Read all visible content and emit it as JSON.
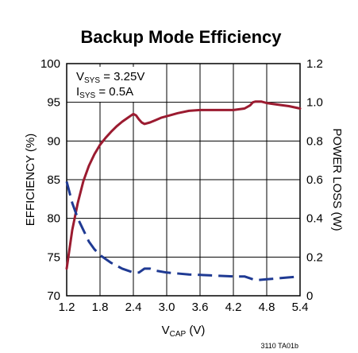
{
  "chart_data": {
    "type": "line",
    "title": "Backup Mode Efficiency",
    "xlabel": {
      "main": "V",
      "sub": "CAP",
      "suffix": " (V)"
    },
    "ylabel_left": "EFFICIENCY (%)",
    "ylabel_right": "POWER LOSS (W)",
    "xlim": [
      1.2,
      5.4
    ],
    "ylim_left": [
      70,
      100
    ],
    "ylim_right": [
      0,
      1.2
    ],
    "x_ticks": [
      "1.2",
      "1.8",
      "2.4",
      "3.0",
      "3.6",
      "4.2",
      "4.8",
      "5.4"
    ],
    "y_left_ticks": [
      "70",
      "75",
      "80",
      "85",
      "90",
      "95",
      "100"
    ],
    "y_right_ticks": [
      "0",
      "0.2",
      "0.4",
      "0.6",
      "0.8",
      "1.0",
      "1.2"
    ],
    "grid": true,
    "annotations": [
      {
        "main": "V",
        "sub": "SYS",
        "rest": " = 3.25V"
      },
      {
        "main": "I",
        "sub": "SYS",
        "rest": " = 0.5A"
      }
    ],
    "footnote": "3110 TA01b",
    "series": [
      {
        "axis": "left",
        "style": "solid",
        "color": "#9B1B30",
        "x": [
          1.2,
          1.3,
          1.4,
          1.5,
          1.6,
          1.7,
          1.8,
          1.9,
          2.0,
          2.1,
          2.2,
          2.3,
          2.4,
          2.45,
          2.5,
          2.55,
          2.6,
          2.7,
          2.8,
          2.9,
          3.0,
          3.2,
          3.4,
          3.6,
          3.8,
          4.0,
          4.2,
          4.4,
          4.5,
          4.55,
          4.6,
          4.7,
          4.8,
          5.0,
          5.2,
          5.4
        ],
        "y": [
          73.5,
          78.5,
          82.0,
          84.8,
          86.8,
          88.3,
          89.5,
          90.4,
          91.2,
          91.9,
          92.5,
          93.0,
          93.5,
          93.3,
          92.8,
          92.4,
          92.2,
          92.4,
          92.7,
          93.0,
          93.2,
          93.6,
          93.9,
          94.0,
          94.0,
          94.0,
          94.0,
          94.2,
          94.6,
          95.0,
          95.1,
          95.1,
          94.9,
          94.7,
          94.5,
          94.2
        ]
      },
      {
        "axis": "right",
        "style": "dashed",
        "color": "#1F3A93",
        "x": [
          1.2,
          1.3,
          1.4,
          1.5,
          1.6,
          1.7,
          1.8,
          2.0,
          2.2,
          2.4,
          2.5,
          2.6,
          2.7,
          2.8,
          3.0,
          3.4,
          3.8,
          4.2,
          4.4,
          4.5,
          4.6,
          4.8,
          5.0,
          5.2,
          5.4
        ],
        "y": [
          0.59,
          0.48,
          0.4,
          0.34,
          0.28,
          0.24,
          0.21,
          0.17,
          0.14,
          0.12,
          0.12,
          0.14,
          0.14,
          0.13,
          0.12,
          0.11,
          0.105,
          0.1,
          0.1,
          0.09,
          0.08,
          0.085,
          0.09,
          0.095,
          0.1
        ]
      }
    ]
  }
}
